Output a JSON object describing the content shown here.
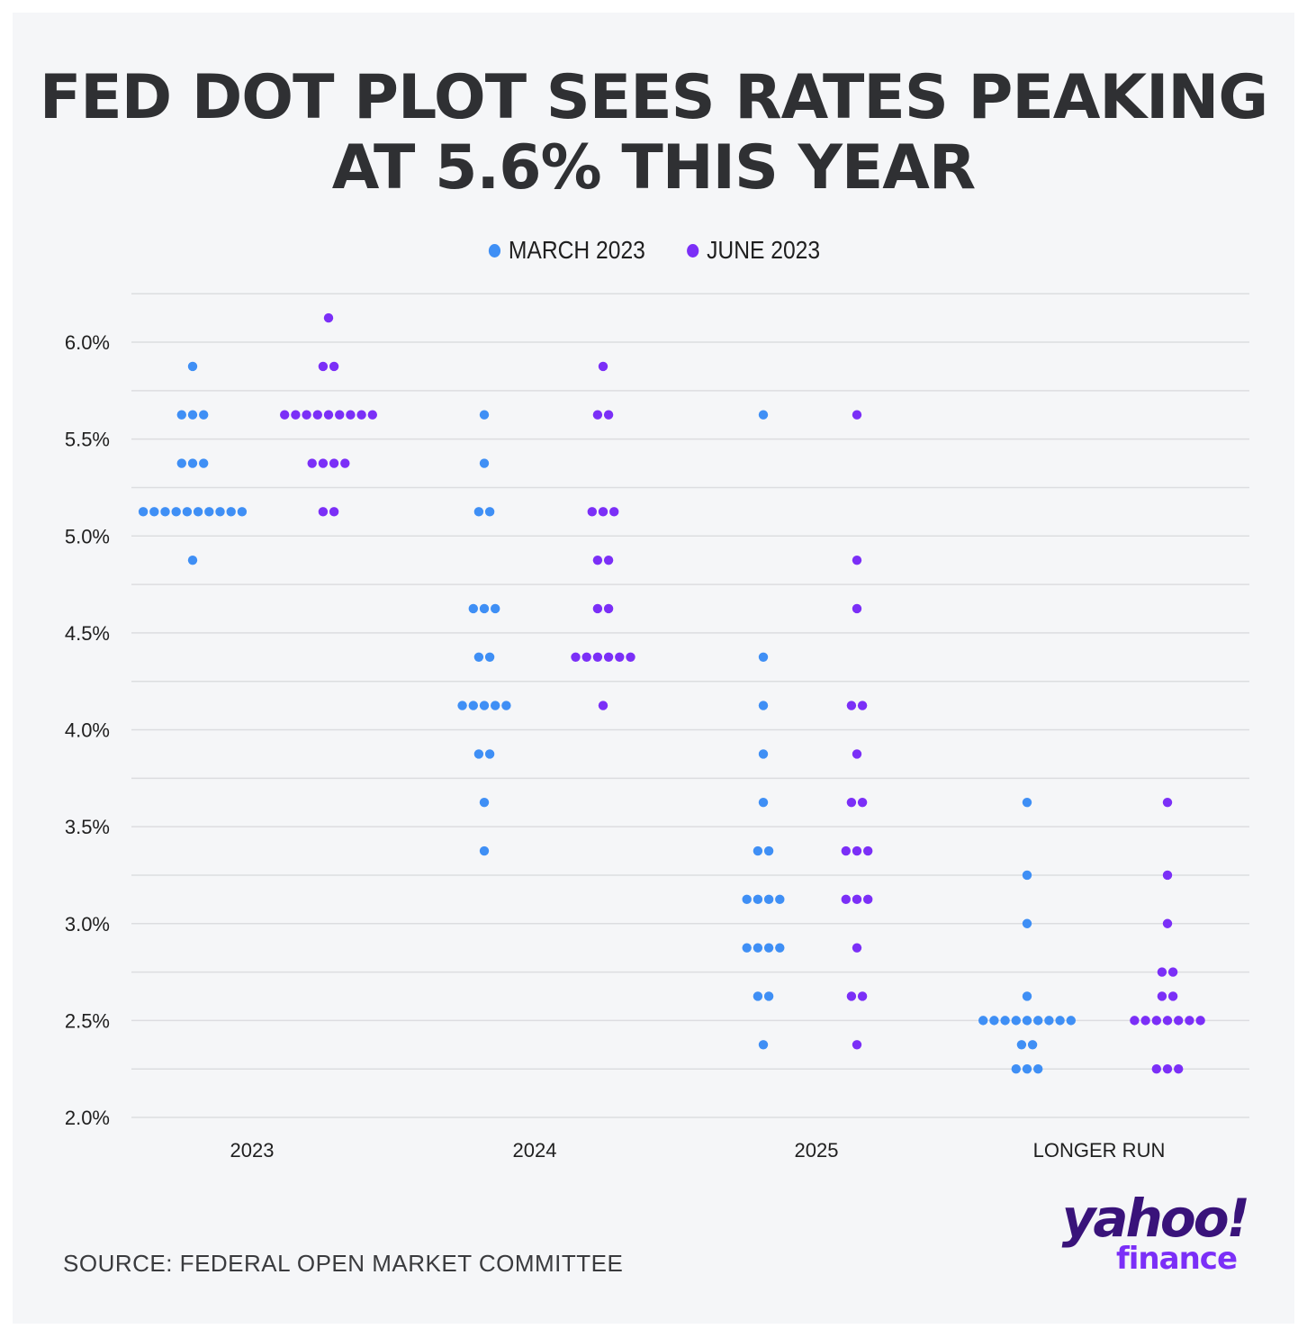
{
  "title": {
    "line1": "FED DOT PLOT SEES RATES PEAKING",
    "line2": "AT 5.6% THIS YEAR"
  },
  "legend": [
    {
      "label": "MARCH 2023",
      "color": "#3f8ff5"
    },
    {
      "label": "JUNE 2023",
      "color": "#7b2ff7"
    }
  ],
  "source": "SOURCE: FEDERAL OPEN MARKET COMMITTEE",
  "logo": {
    "line1": "yahoo!",
    "line2": "finance"
  },
  "chart_data": {
    "type": "scatter",
    "title": "FED DOT PLOT SEES RATES PEAKING AT 5.6% THIS YEAR",
    "xlabel": "",
    "ylabel": "",
    "ylim": [
      2.0,
      6.25
    ],
    "yticks": [
      "6.0%",
      "5.5%",
      "5.0%",
      "4.5%",
      "4.0%",
      "3.5%",
      "3.0%",
      "2.5%",
      "2.0%"
    ],
    "ytick_values": [
      6.0,
      5.5,
      5.0,
      4.5,
      4.0,
      3.5,
      3.0,
      2.5,
      2.0
    ],
    "categories": [
      "2023",
      "2024",
      "2025",
      "LONGER RUN"
    ],
    "grid": true,
    "legend_position": "top-center",
    "series": [
      {
        "name": "MARCH 2023",
        "color": "#3f8ff5",
        "dots": [
          [
            {
              "rate": 5.875,
              "count": 1
            },
            {
              "rate": 5.625,
              "count": 3
            },
            {
              "rate": 5.375,
              "count": 3
            },
            {
              "rate": 5.125,
              "count": 10
            },
            {
              "rate": 4.875,
              "count": 1
            }
          ],
          [
            {
              "rate": 5.625,
              "count": 1
            },
            {
              "rate": 5.375,
              "count": 1
            },
            {
              "rate": 5.125,
              "count": 2
            },
            {
              "rate": 4.625,
              "count": 3
            },
            {
              "rate": 4.375,
              "count": 2
            },
            {
              "rate": 4.125,
              "count": 5
            },
            {
              "rate": 3.875,
              "count": 2
            },
            {
              "rate": 3.625,
              "count": 1
            },
            {
              "rate": 3.375,
              "count": 1
            }
          ],
          [
            {
              "rate": 5.625,
              "count": 1
            },
            {
              "rate": 4.375,
              "count": 1
            },
            {
              "rate": 4.125,
              "count": 1
            },
            {
              "rate": 3.875,
              "count": 1
            },
            {
              "rate": 3.625,
              "count": 1
            },
            {
              "rate": 3.375,
              "count": 2
            },
            {
              "rate": 3.125,
              "count": 4
            },
            {
              "rate": 2.875,
              "count": 4
            },
            {
              "rate": 2.625,
              "count": 2
            },
            {
              "rate": 2.375,
              "count": 1
            }
          ],
          [
            {
              "rate": 3.625,
              "count": 1
            },
            {
              "rate": 3.25,
              "count": 1
            },
            {
              "rate": 3.0,
              "count": 1
            },
            {
              "rate": 2.625,
              "count": 1
            },
            {
              "rate": 2.5,
              "count": 9
            },
            {
              "rate": 2.375,
              "count": 2
            },
            {
              "rate": 2.25,
              "count": 3
            }
          ]
        ]
      },
      {
        "name": "JUNE 2023",
        "color": "#7b2ff7",
        "dots": [
          [
            {
              "rate": 6.125,
              "count": 1
            },
            {
              "rate": 5.875,
              "count": 2
            },
            {
              "rate": 5.625,
              "count": 9
            },
            {
              "rate": 5.375,
              "count": 4
            },
            {
              "rate": 5.125,
              "count": 2
            }
          ],
          [
            {
              "rate": 5.875,
              "count": 1
            },
            {
              "rate": 5.625,
              "count": 2
            },
            {
              "rate": 5.125,
              "count": 3
            },
            {
              "rate": 4.875,
              "count": 2
            },
            {
              "rate": 4.625,
              "count": 2
            },
            {
              "rate": 4.375,
              "count": 6
            },
            {
              "rate": 4.125,
              "count": 1
            }
          ],
          [
            {
              "rate": 5.625,
              "count": 1
            },
            {
              "rate": 4.875,
              "count": 1
            },
            {
              "rate": 4.625,
              "count": 1
            },
            {
              "rate": 4.125,
              "count": 2
            },
            {
              "rate": 3.875,
              "count": 1
            },
            {
              "rate": 3.625,
              "count": 2
            },
            {
              "rate": 3.375,
              "count": 3
            },
            {
              "rate": 3.125,
              "count": 3
            },
            {
              "rate": 2.875,
              "count": 1
            },
            {
              "rate": 2.625,
              "count": 2
            },
            {
              "rate": 2.375,
              "count": 1
            }
          ],
          [
            {
              "rate": 3.625,
              "count": 1
            },
            {
              "rate": 3.25,
              "count": 1
            },
            {
              "rate": 3.0,
              "count": 1
            },
            {
              "rate": 2.75,
              "count": 2
            },
            {
              "rate": 2.625,
              "count": 2
            },
            {
              "rate": 2.5,
              "count": 7
            },
            {
              "rate": 2.25,
              "count": 3
            }
          ]
        ]
      }
    ]
  }
}
